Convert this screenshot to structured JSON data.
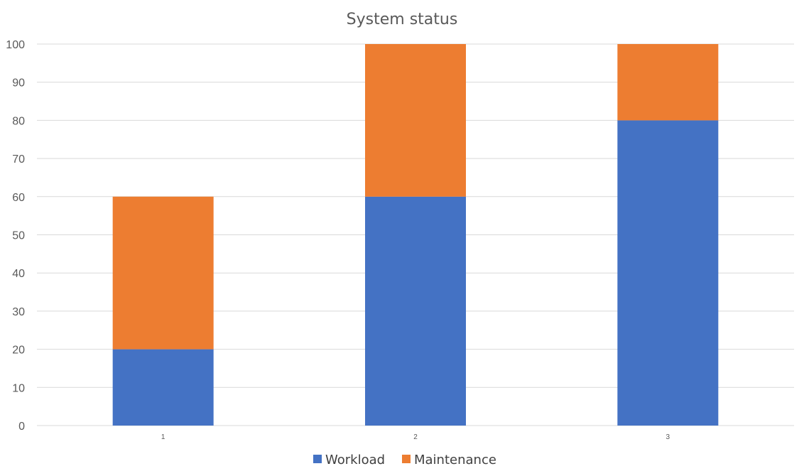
{
  "chart_data": {
    "type": "bar",
    "stacked": true,
    "title": "System status",
    "categories": [
      "1",
      "2",
      "3"
    ],
    "series": [
      {
        "name": "Workload",
        "values": [
          20,
          60,
          80
        ],
        "color": "#4472C4"
      },
      {
        "name": "Maintenance",
        "values": [
          40,
          40,
          20
        ],
        "color": "#ED7D31"
      }
    ],
    "ylim": [
      0,
      100
    ],
    "yticks": [
      0,
      10,
      20,
      30,
      40,
      50,
      60,
      70,
      80,
      90,
      100
    ],
    "grid": true,
    "legend": "bottom"
  }
}
